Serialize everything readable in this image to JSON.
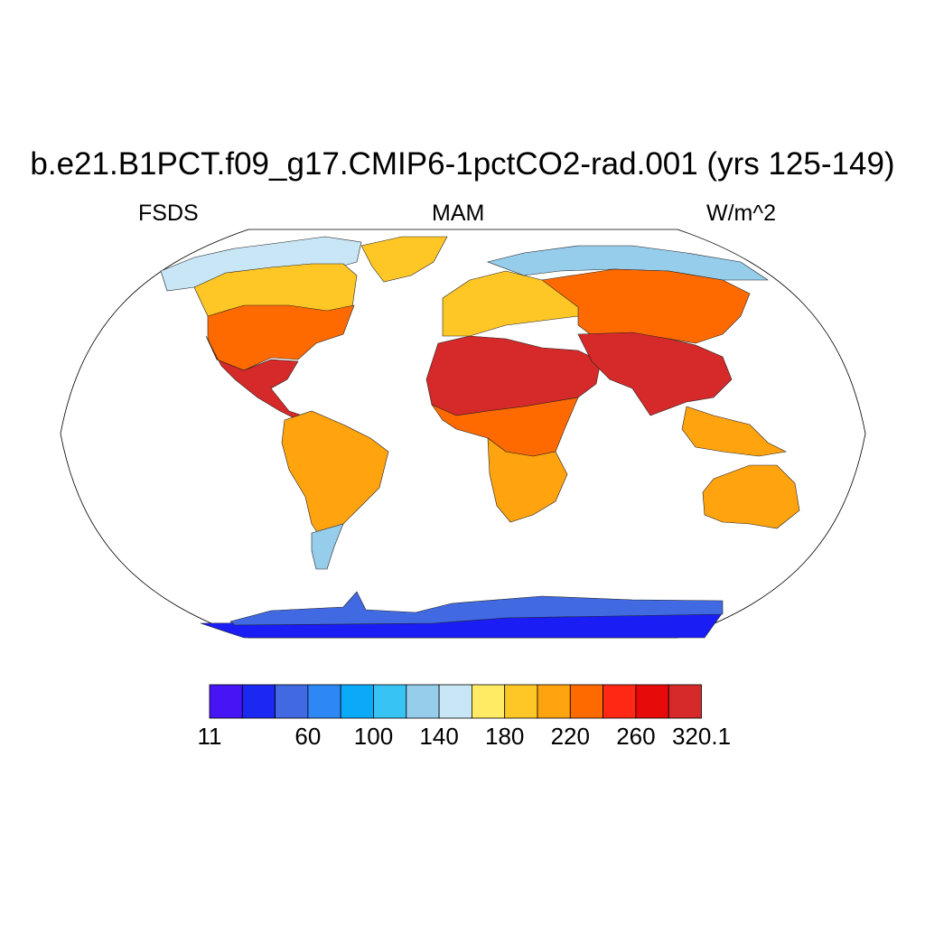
{
  "title": "b.e21.B1PCT.f09_g17.CMIP6-1pctCO2-rad.001 (yrs 125-149)",
  "left_label": "FSDS",
  "center_label": "MAM",
  "right_label": "W/m^2",
  "map": {
    "projection": "robinson",
    "fill_shown": "land-only surface shortwave downwelling flux",
    "regions": [
      {
        "name": "north-america",
        "color": "#ff6a00"
      },
      {
        "name": "gulf-mexico-central-america",
        "color": "#d62929"
      },
      {
        "name": "canada-boreal",
        "color": "#ffc726"
      },
      {
        "name": "arctic-canada",
        "color": "#c8e6f5"
      },
      {
        "name": "greenland",
        "color": "#ffc726"
      },
      {
        "name": "south-america",
        "color": "#ffa30f"
      },
      {
        "name": "patagonia",
        "color": "#96cdeb"
      },
      {
        "name": "sahara-arabia",
        "color": "#d62929"
      },
      {
        "name": "central-africa",
        "color": "#ff6a00"
      },
      {
        "name": "southern-africa",
        "color": "#ffa30f"
      },
      {
        "name": "europe",
        "color": "#ffc726"
      },
      {
        "name": "siberia",
        "color": "#96cdeb"
      },
      {
        "name": "central-asia",
        "color": "#ff6a00"
      },
      {
        "name": "south-asia",
        "color": "#d62929"
      },
      {
        "name": "southeast-asia",
        "color": "#ffa30f"
      },
      {
        "name": "australia",
        "color": "#ffa30f"
      },
      {
        "name": "antarctica-coast",
        "color": "#4169e1"
      },
      {
        "name": "antarctica-interior",
        "color": "#1a1ef5"
      }
    ]
  },
  "colorbar": {
    "colors": [
      "#4614f5",
      "#1a28f2",
      "#4169e1",
      "#2d87f5",
      "#0aaaf8",
      "#38c3f5",
      "#96cdeb",
      "#c8e6f5",
      "#ffeb64",
      "#ffc726",
      "#ffa30f",
      "#ff6a00",
      "#ff2814",
      "#e60a0a",
      "#d62929"
    ],
    "labels": [
      {
        "text": "11",
        "at_box_boundary": 0
      },
      {
        "text": "60",
        "at_box_boundary": 3
      },
      {
        "text": "100",
        "at_box_boundary": 5
      },
      {
        "text": "140",
        "at_box_boundary": 7
      },
      {
        "text": "180",
        "at_box_boundary": 9
      },
      {
        "text": "220",
        "at_box_boundary": 11
      },
      {
        "text": "260",
        "at_box_boundary": 13
      },
      {
        "text": "320.1",
        "at_box_boundary": 15
      }
    ]
  }
}
